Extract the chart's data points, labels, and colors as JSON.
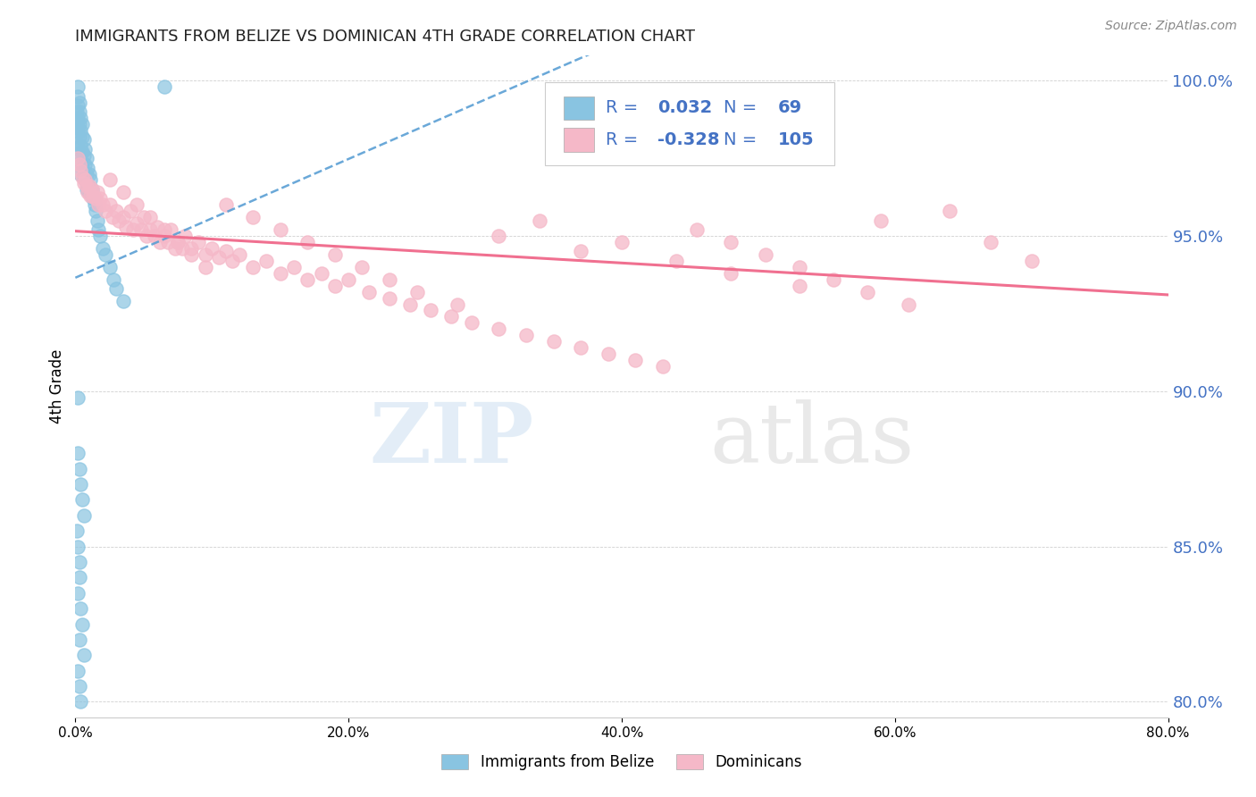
{
  "title": "IMMIGRANTS FROM BELIZE VS DOMINICAN 4TH GRADE CORRELATION CHART",
  "source_text": "Source: ZipAtlas.com",
  "ylabel": "4th Grade",
  "watermark_zip": "ZIP",
  "watermark_atlas": "atlas",
  "belize_R": 0.032,
  "belize_N": 69,
  "dominican_R": -0.328,
  "dominican_N": 105,
  "belize_color": "#89c4e1",
  "dominican_color": "#f5b8c8",
  "belize_line_color": "#5a9fd4",
  "dominican_line_color": "#f07090",
  "right_axis_color": "#4472c4",
  "legend_R_color": "#4472c4",
  "x_min": 0.0,
  "x_max": 0.8,
  "y_min": 0.795,
  "y_max": 1.008,
  "right_yticks": [
    0.8,
    0.85,
    0.9,
    0.95,
    1.0
  ],
  "right_yticklabels": [
    "80.0%",
    "85.0%",
    "90.0%",
    "95.0%",
    "100.0%"
  ],
  "belize_x": [
    0.001,
    0.001,
    0.001,
    0.002,
    0.002,
    0.002,
    0.002,
    0.002,
    0.002,
    0.003,
    0.003,
    0.003,
    0.003,
    0.003,
    0.004,
    0.004,
    0.004,
    0.004,
    0.004,
    0.005,
    0.005,
    0.005,
    0.005,
    0.006,
    0.006,
    0.006,
    0.007,
    0.007,
    0.007,
    0.008,
    0.008,
    0.008,
    0.009,
    0.009,
    0.01,
    0.01,
    0.011,
    0.012,
    0.013,
    0.014,
    0.015,
    0.016,
    0.017,
    0.018,
    0.02,
    0.022,
    0.025,
    0.028,
    0.03,
    0.035,
    0.002,
    0.003,
    0.004,
    0.005,
    0.006,
    0.001,
    0.002,
    0.003,
    0.003,
    0.002,
    0.004,
    0.005,
    0.003,
    0.006,
    0.002,
    0.003,
    0.004,
    0.002,
    0.065
  ],
  "belize_y": [
    0.99,
    0.985,
    0.98,
    0.998,
    0.995,
    0.992,
    0.988,
    0.985,
    0.978,
    0.993,
    0.99,
    0.986,
    0.982,
    0.975,
    0.988,
    0.984,
    0.979,
    0.974,
    0.97,
    0.986,
    0.982,
    0.977,
    0.972,
    0.981,
    0.976,
    0.97,
    0.978,
    0.973,
    0.968,
    0.975,
    0.97,
    0.965,
    0.972,
    0.966,
    0.97,
    0.964,
    0.968,
    0.965,
    0.962,
    0.96,
    0.958,
    0.955,
    0.952,
    0.95,
    0.946,
    0.944,
    0.94,
    0.936,
    0.933,
    0.929,
    0.88,
    0.875,
    0.87,
    0.865,
    0.86,
    0.855,
    0.85,
    0.845,
    0.84,
    0.835,
    0.83,
    0.825,
    0.82,
    0.815,
    0.81,
    0.805,
    0.8,
    0.898,
    0.998
  ],
  "dominican_x": [
    0.002,
    0.003,
    0.004,
    0.005,
    0.006,
    0.007,
    0.008,
    0.009,
    0.01,
    0.011,
    0.012,
    0.013,
    0.015,
    0.016,
    0.017,
    0.018,
    0.02,
    0.022,
    0.025,
    0.027,
    0.03,
    0.032,
    0.035,
    0.037,
    0.04,
    0.042,
    0.045,
    0.048,
    0.05,
    0.052,
    0.055,
    0.058,
    0.06,
    0.062,
    0.065,
    0.068,
    0.07,
    0.073,
    0.075,
    0.078,
    0.08,
    0.085,
    0.09,
    0.095,
    0.1,
    0.105,
    0.11,
    0.115,
    0.12,
    0.13,
    0.14,
    0.15,
    0.16,
    0.17,
    0.18,
    0.19,
    0.2,
    0.215,
    0.23,
    0.245,
    0.26,
    0.275,
    0.29,
    0.31,
    0.33,
    0.35,
    0.37,
    0.39,
    0.41,
    0.43,
    0.455,
    0.48,
    0.505,
    0.53,
    0.555,
    0.58,
    0.61,
    0.64,
    0.67,
    0.7,
    0.025,
    0.035,
    0.045,
    0.055,
    0.065,
    0.075,
    0.085,
    0.095,
    0.11,
    0.13,
    0.15,
    0.17,
    0.19,
    0.21,
    0.23,
    0.25,
    0.28,
    0.31,
    0.34,
    0.37,
    0.4,
    0.44,
    0.48,
    0.53,
    0.59
  ],
  "dominican_y": [
    0.975,
    0.973,
    0.971,
    0.969,
    0.967,
    0.968,
    0.966,
    0.964,
    0.966,
    0.963,
    0.965,
    0.963,
    0.962,
    0.964,
    0.96,
    0.962,
    0.96,
    0.958,
    0.96,
    0.956,
    0.958,
    0.955,
    0.956,
    0.953,
    0.958,
    0.952,
    0.954,
    0.952,
    0.956,
    0.95,
    0.952,
    0.95,
    0.953,
    0.948,
    0.95,
    0.948,
    0.952,
    0.946,
    0.948,
    0.946,
    0.95,
    0.946,
    0.948,
    0.944,
    0.946,
    0.943,
    0.945,
    0.942,
    0.944,
    0.94,
    0.942,
    0.938,
    0.94,
    0.936,
    0.938,
    0.934,
    0.936,
    0.932,
    0.93,
    0.928,
    0.926,
    0.924,
    0.922,
    0.92,
    0.918,
    0.916,
    0.914,
    0.912,
    0.91,
    0.908,
    0.952,
    0.948,
    0.944,
    0.94,
    0.936,
    0.932,
    0.928,
    0.958,
    0.948,
    0.942,
    0.968,
    0.964,
    0.96,
    0.956,
    0.952,
    0.948,
    0.944,
    0.94,
    0.96,
    0.956,
    0.952,
    0.948,
    0.944,
    0.94,
    0.936,
    0.932,
    0.928,
    0.95,
    0.955,
    0.945,
    0.948,
    0.942,
    0.938,
    0.934,
    0.955
  ]
}
